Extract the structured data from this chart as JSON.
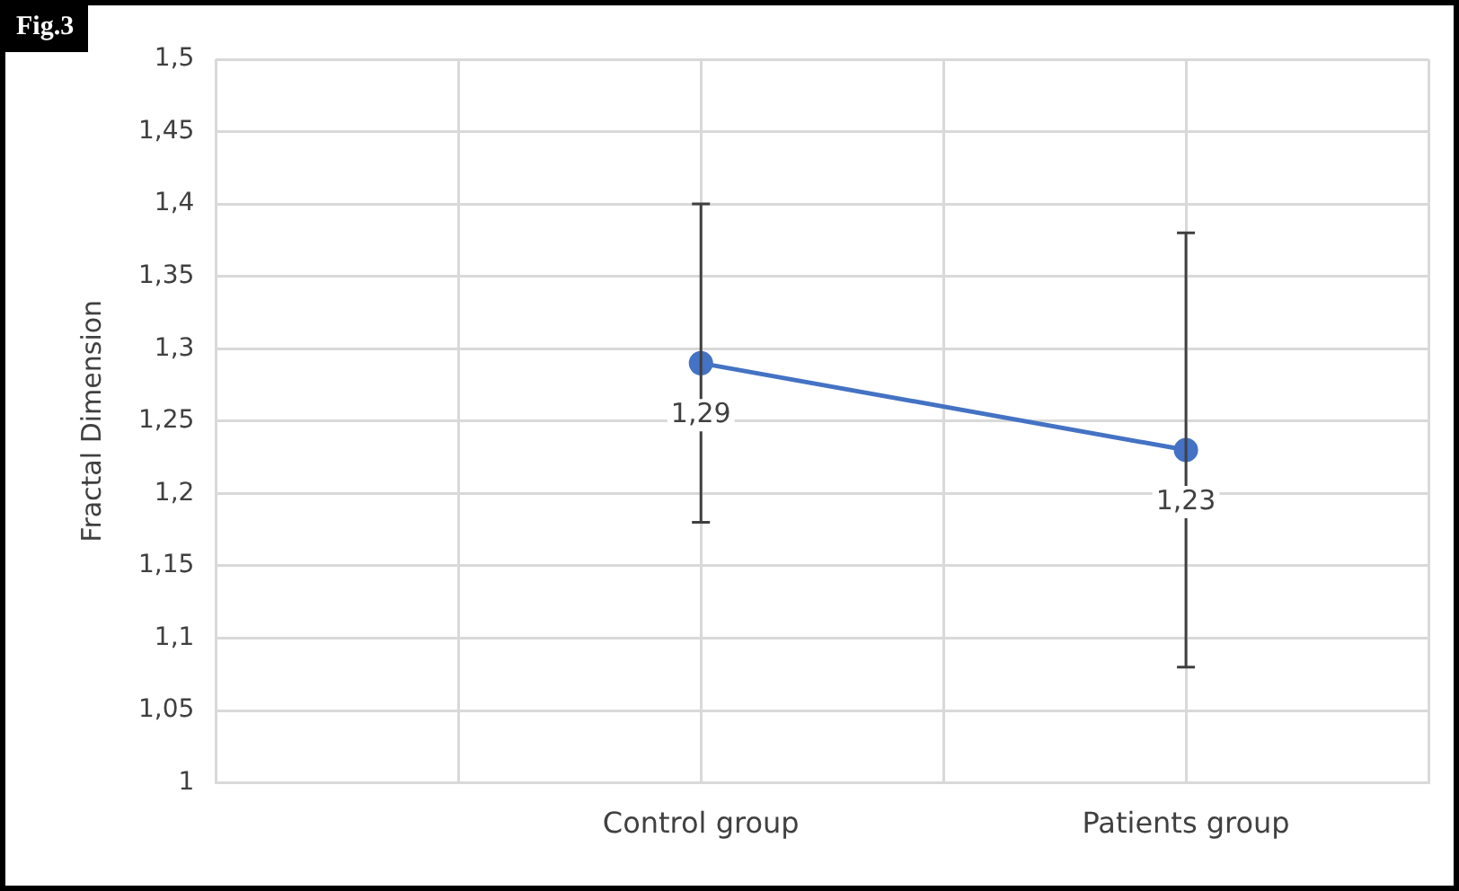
{
  "chart_data": {
    "type": "line",
    "ylabel": "Fractal Dimension",
    "annotations": [
      "Fig.3"
    ],
    "categories": [
      null,
      null,
      "Control group",
      null,
      "Patients group",
      null
    ],
    "series": [
      {
        "color": "#4472c4",
        "values": [
          null,
          null,
          1.29,
          null,
          1.23,
          null
        ],
        "errors": [
          null,
          null,
          [
            1.18,
            1.4
          ],
          null,
          [
            1.08,
            1.38
          ],
          null
        ],
        "value_labels": [
          null,
          null,
          "1,29",
          null,
          "1,23",
          null
        ]
      }
    ],
    "ylim": [
      1,
      1.5
    ],
    "yticks": [
      1,
      {
        "value": 1.05,
        "label": "1,05"
      },
      {
        "value": 1.1,
        "label": "1,1"
      },
      {
        "value": 1.15,
        "label": "1,15"
      },
      {
        "value": 1.2,
        "label": "1,2"
      },
      {
        "value": 1.25,
        "label": "1,25"
      },
      {
        "value": 1.3,
        "label": "1,3"
      },
      {
        "value": 1.35,
        "label": "1,35"
      },
      {
        "value": 1.4,
        "label": "1,4"
      },
      {
        "value": 1.45,
        "label": "1,45"
      },
      {
        "value": 1.5,
        "label": "1,5"
      }
    ],
    "grid": true,
    "legend": false,
    "marker": "circle",
    "line_style": "solid"
  }
}
